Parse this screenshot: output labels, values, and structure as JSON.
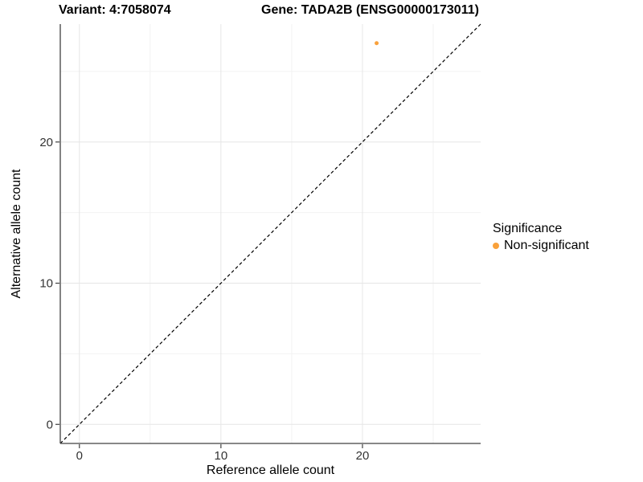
{
  "chart_data": {
    "type": "scatter",
    "titles": {
      "left": "Variant: 4:7058074",
      "right": "Gene: TADA2B (ENSG00000173011)"
    },
    "xlabel": "Reference allele count",
    "ylabel": "Alternative allele count",
    "xlim": [
      -1.35,
      28.35
    ],
    "ylim": [
      -1.35,
      28.35
    ],
    "x_ticks": {
      "major": [
        0,
        10,
        20
      ],
      "minor": [
        5,
        15,
        25
      ]
    },
    "y_ticks": {
      "major": [
        0,
        10,
        20
      ],
      "minor": [
        5,
        15,
        25
      ]
    },
    "grid": "major+minor on white background",
    "reference_line": {
      "type": "abline",
      "slope": 1,
      "intercept": 0,
      "style": "dashed",
      "color": "#000000"
    },
    "series": [
      {
        "name": "Non-significant",
        "color": "#F9A13B",
        "points": [
          {
            "x": 21,
            "y": 27
          }
        ]
      }
    ],
    "legend": {
      "title": "Significance",
      "position": "right",
      "entries": [
        {
          "label": "Non-significant",
          "color": "#F9A13B"
        }
      ]
    },
    "colors": {
      "grid_major": "#E6E6E6",
      "grid_minor": "#F2F2F2",
      "axis_line": "#404040",
      "tick_label": "#333333",
      "point": "#F9A13B"
    }
  }
}
